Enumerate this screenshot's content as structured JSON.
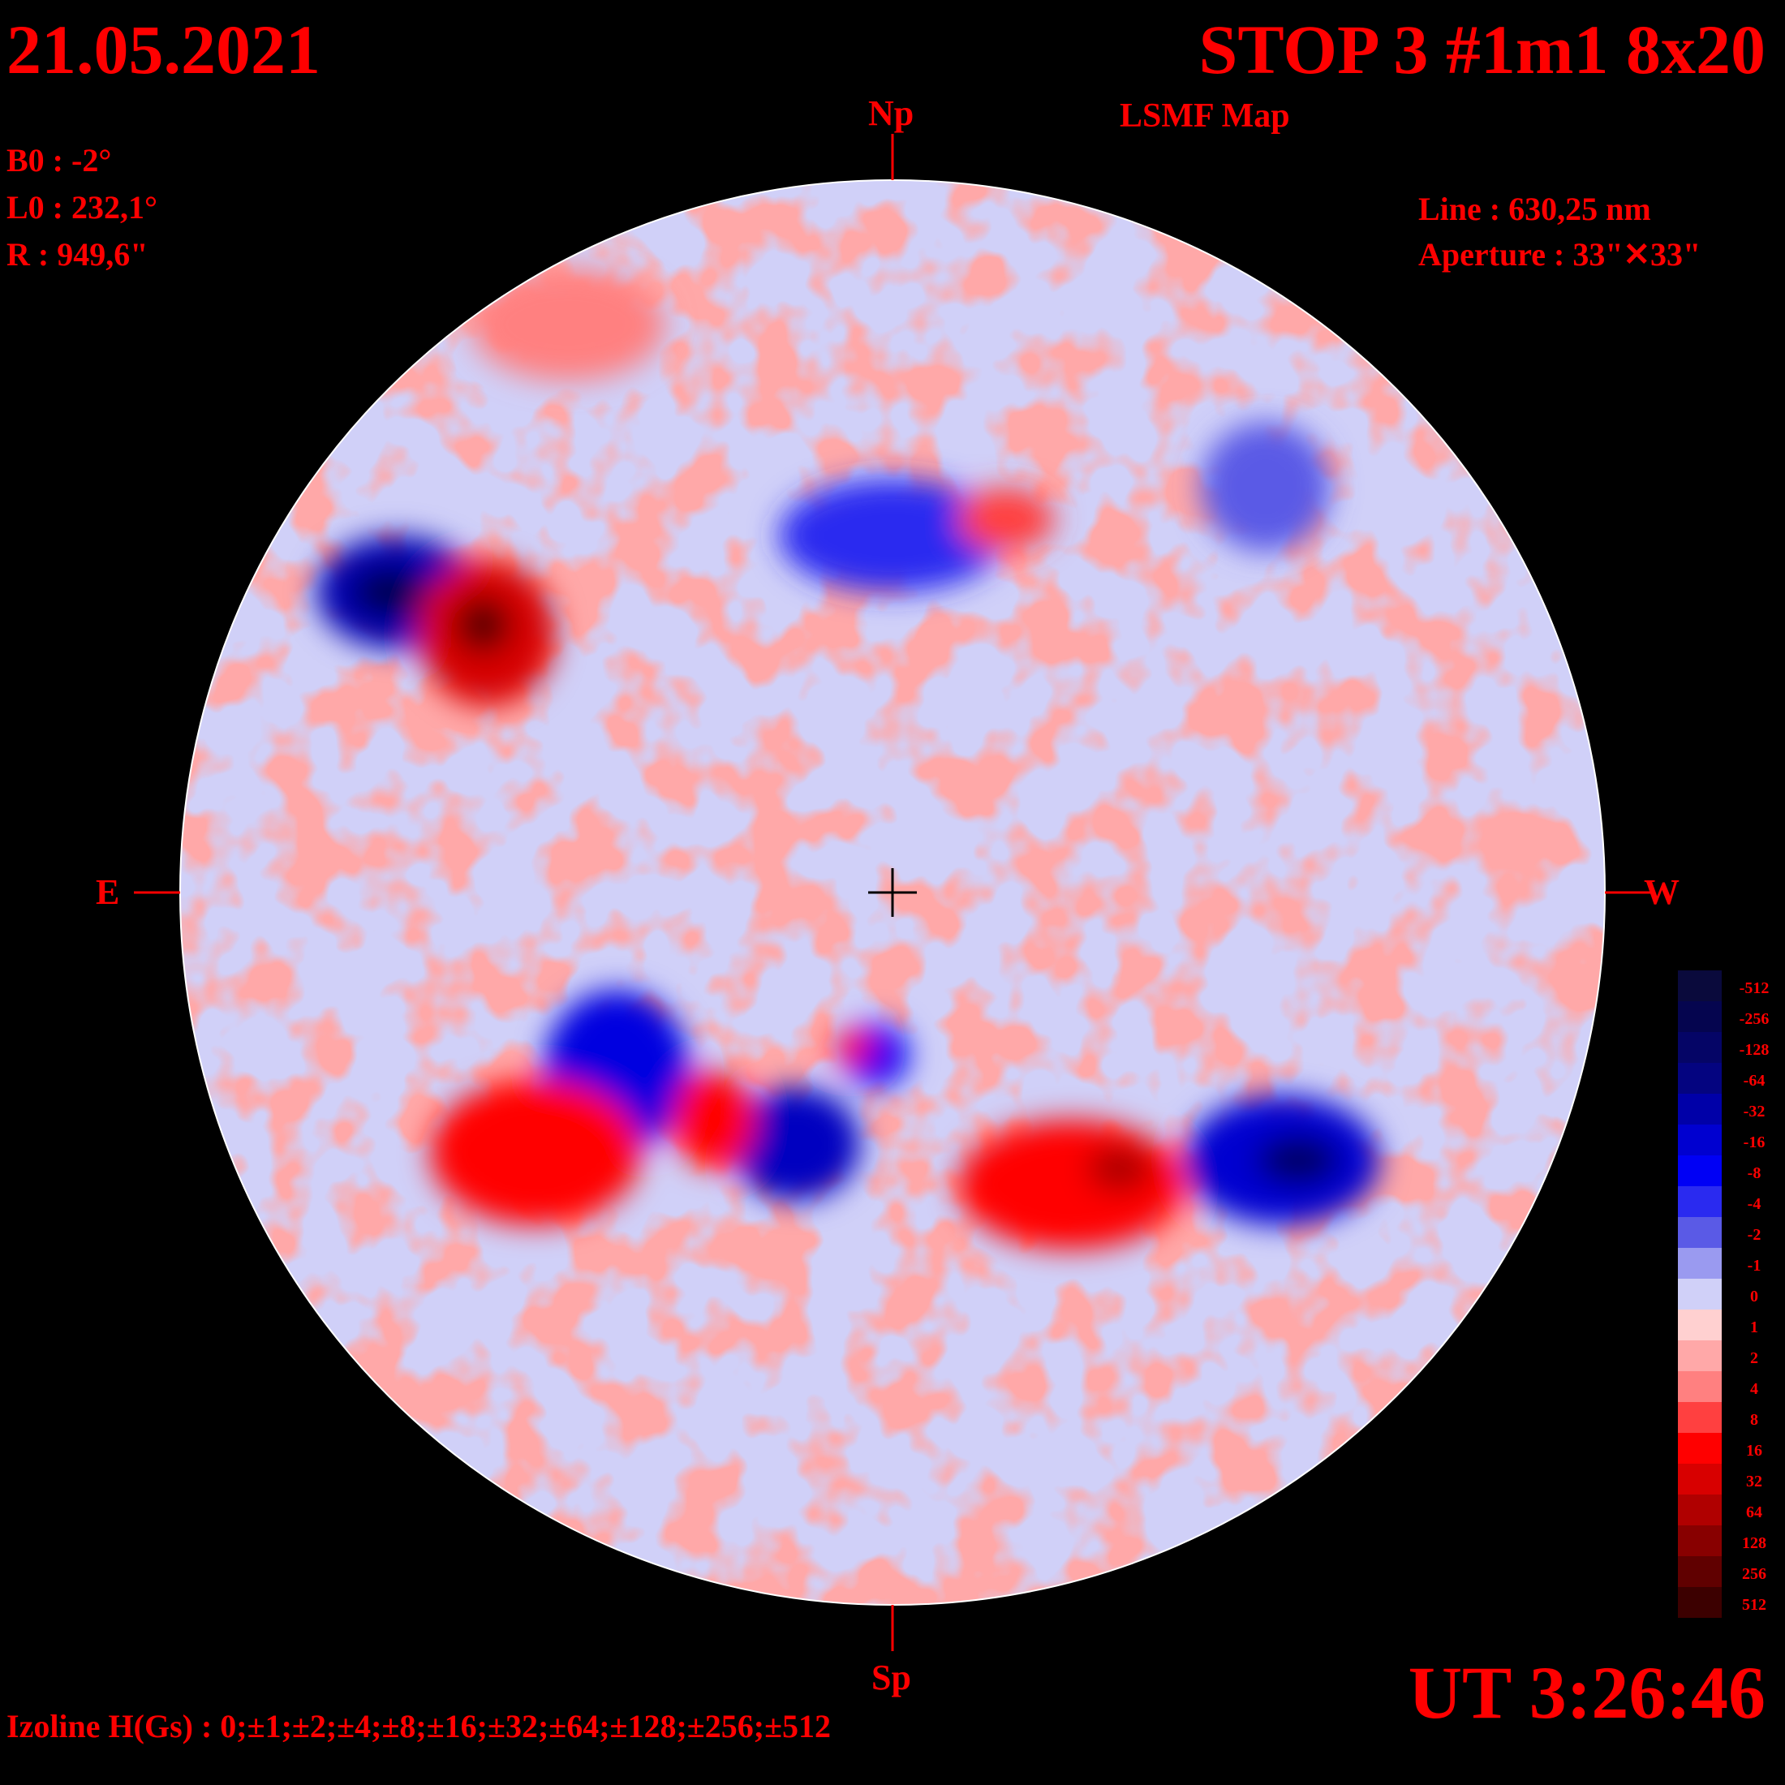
{
  "header": {
    "date": "21.05.2021",
    "title": "STOP 3 #1m1 8x20",
    "subtitle": "LSMF  Map"
  },
  "parameters": {
    "b0": "B0 : -2°",
    "l0": "L0 : 232,1°",
    "radius": "R  : 949,6\"",
    "line": "Line :  630,25 nm",
    "aperture": "Aperture : 33\"✕33\""
  },
  "directions": {
    "north": "Np",
    "south": "Sp",
    "east": "E",
    "west": "W"
  },
  "time": "UT 3:26:46",
  "izoline": "Izoline H(Gs) : 0;±1;±2;±4;±8;±16;±32;±64;±128;±256;±512",
  "legend": {
    "labels": [
      "-512",
      "-256",
      "-128",
      "-64",
      "-32",
      "-16",
      "-8",
      "-4",
      "-2",
      "-1",
      "0",
      "1",
      "2",
      "4",
      "8",
      "16",
      "32",
      "64",
      "128",
      "256",
      "512"
    ],
    "colors": [
      "#0a0a3c",
      "#05054f",
      "#050566",
      "#040480",
      "#0000a8",
      "#0000d0",
      "#0000f5",
      "#2a2af0",
      "#5a5ae6",
      "#9a9af0",
      "#d0d0f8",
      "#ffd0d0",
      "#ffa8a8",
      "#ff8080",
      "#ff4040",
      "#ff0000",
      "#d80000",
      "#b00000",
      "#880000",
      "#600000",
      "#3c0000"
    ]
  },
  "map": {
    "disk_color_neutral_pos": "#ffd0d0",
    "disk_color_neutral_neg": "#d0d0f8",
    "isoline_color": "#ffffff",
    "regions": [
      {
        "polarity": "negative",
        "level": "-256",
        "location": "north-east"
      },
      {
        "polarity": "positive",
        "level": "128",
        "location": "north-east"
      },
      {
        "polarity": "negative",
        "level": "-64",
        "location": "south-center"
      },
      {
        "polarity": "positive",
        "level": "32",
        "location": "south-east"
      },
      {
        "polarity": "negative",
        "level": "-128",
        "location": "south-west"
      },
      {
        "polarity": "positive",
        "level": "64",
        "location": "south-center-west"
      }
    ]
  }
}
